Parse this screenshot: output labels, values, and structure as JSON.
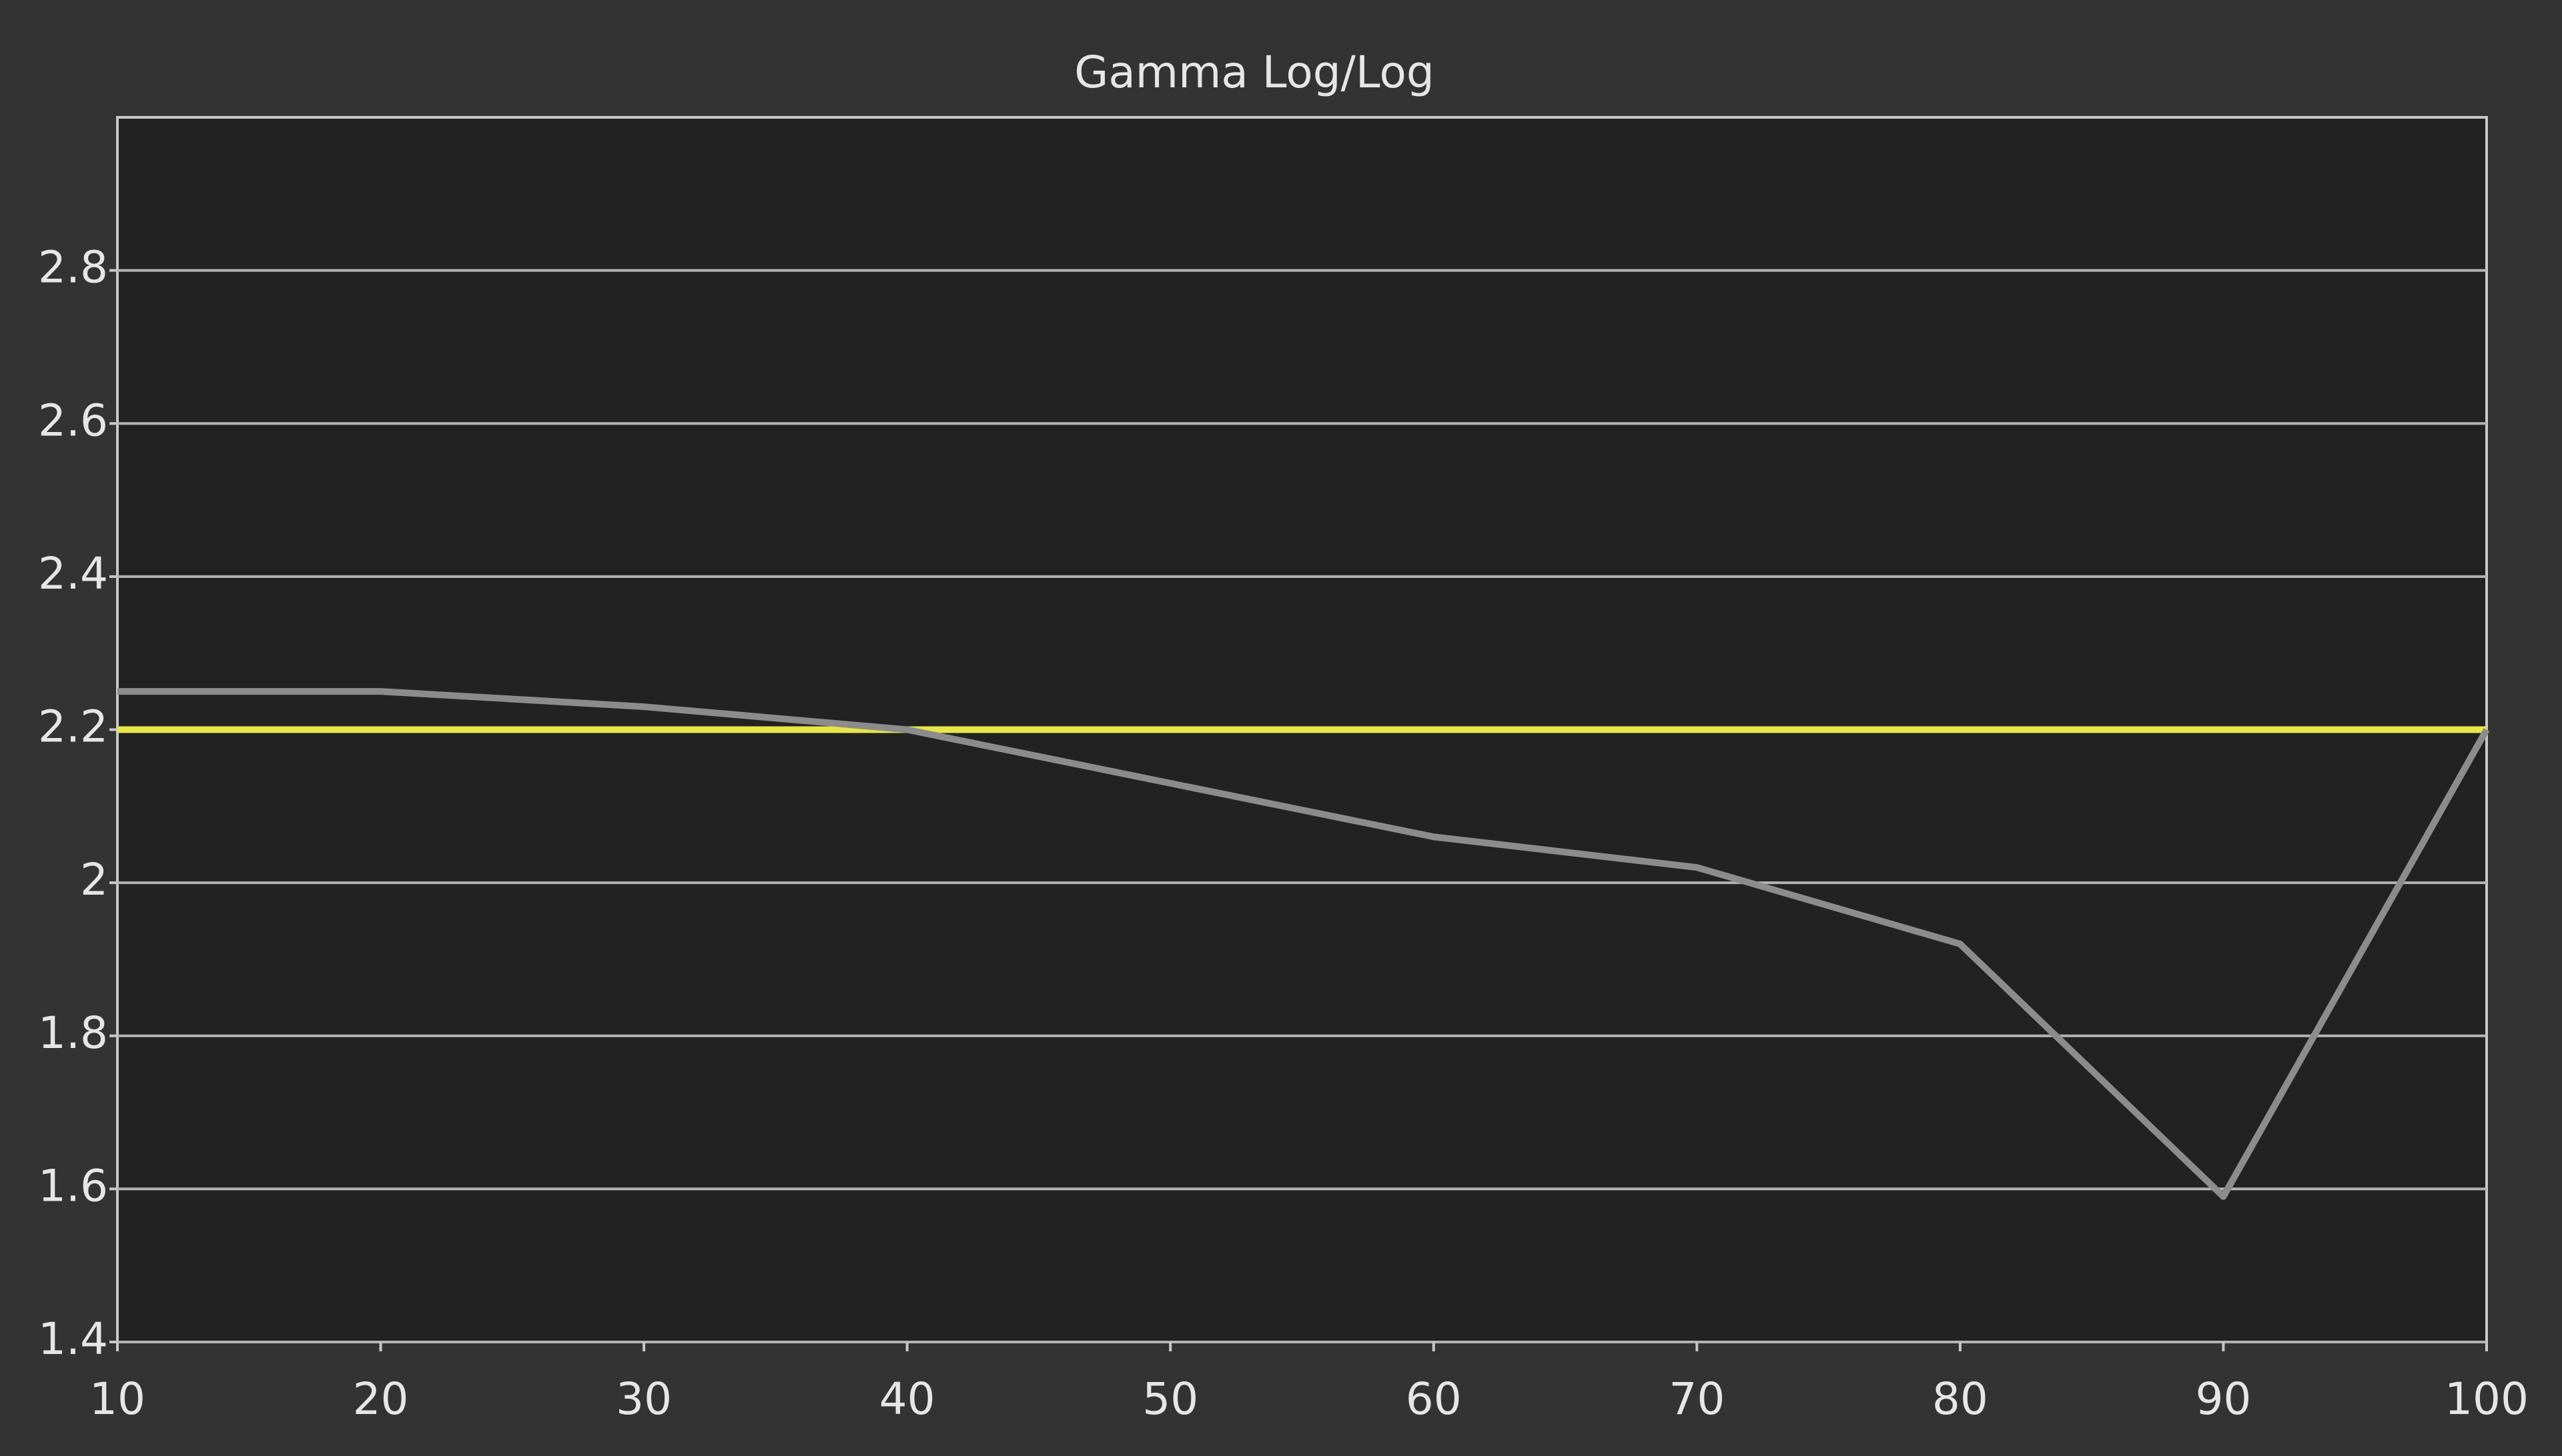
{
  "chart_data": {
    "type": "line",
    "title": "Gamma Log/Log",
    "x": [
      10,
      20,
      30,
      40,
      50,
      60,
      70,
      80,
      90,
      100
    ],
    "series": [
      {
        "color": "#e6e64a",
        "values": [
          2.2,
          2.2,
          2.2,
          2.2,
          2.2,
          2.2,
          2.2,
          2.2,
          2.2,
          2.2
        ]
      },
      {
        "color": "#8c8c8c",
        "values": [
          2.25,
          2.25,
          2.23,
          2.2,
          2.13,
          2.06,
          2.02,
          1.92,
          1.59,
          2.2
        ]
      }
    ],
    "xlim": [
      10,
      100
    ],
    "xticks": [
      10,
      20,
      30,
      40,
      50,
      60,
      70,
      80,
      90,
      100
    ],
    "ylim": [
      1.4,
      3.0
    ],
    "yticks": [
      1.4,
      1.6,
      1.8,
      2,
      2.2,
      2.4,
      2.6,
      2.8
    ],
    "grid": true
  }
}
